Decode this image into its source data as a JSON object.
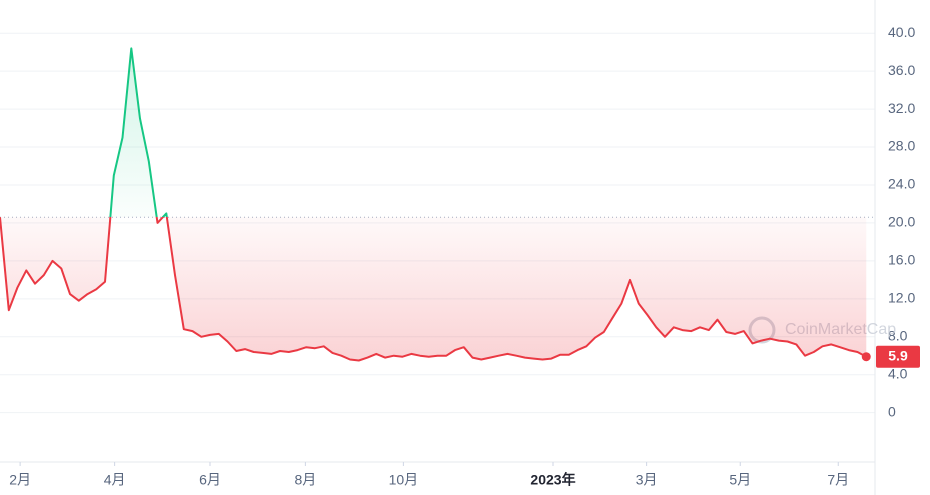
{
  "chart_data": {
    "type": "line",
    "values": [
      20.6,
      10.8,
      13.2,
      15,
      13.6,
      14.5,
      16,
      15.2,
      12.5,
      11.8,
      12.5,
      13,
      13.8,
      25,
      29,
      38.4,
      31,
      26.5,
      20,
      21,
      14.5,
      8.8,
      8.6,
      8,
      8.2,
      8.3,
      7.5,
      6.5,
      6.7,
      6.4,
      6.3,
      6.2,
      6.5,
      6.4,
      6.6,
      6.9,
      6.8,
      7,
      6.3,
      6,
      5.6,
      5.5,
      5.8,
      6.2,
      5.8,
      6,
      5.9,
      6.2,
      6,
      5.9,
      6,
      6,
      6.6,
      6.9,
      5.8,
      5.6,
      5.8,
      6,
      6.2,
      6,
      5.8,
      5.7,
      5.6,
      5.7,
      6.1,
      6.1,
      6.6,
      7,
      7.9,
      8.5,
      10,
      11.5,
      14,
      11.5,
      10.3,
      9,
      8,
      9,
      8.7,
      8.6,
      9,
      8.7,
      9.8,
      8.5,
      8.3,
      8.6,
      7.3,
      7.6,
      7.8,
      7.6,
      7.5,
      7.2,
      6,
      6.4,
      7,
      7.2,
      6.9,
      6.6,
      6.4,
      5.9
    ],
    "baseline": 20.6,
    "up_color": "#16c784",
    "down_color": "#ea3943",
    "xlim": [
      0,
      100
    ],
    "xticks": [
      {
        "value": 2.3,
        "label": "2月"
      },
      {
        "value": 13.1,
        "label": "4月"
      },
      {
        "value": 24,
        "label": "6月"
      },
      {
        "value": 34.9,
        "label": "8月"
      },
      {
        "value": 46.1,
        "label": "10月"
      },
      {
        "value": 63.2,
        "label": "2023年",
        "bold": true
      },
      {
        "value": 73.9,
        "label": "3月"
      },
      {
        "value": 84.6,
        "label": "5月"
      },
      {
        "value": 95.8,
        "label": "7月"
      }
    ],
    "ylim": [
      -5.2,
      43.5
    ],
    "yticks": [
      0,
      {
        "value": 4,
        "label": "4.0"
      },
      {
        "value": 8,
        "label": "8.0"
      },
      {
        "value": 12,
        "label": "12.0"
      },
      {
        "value": 16,
        "label": "16.0"
      },
      {
        "value": 20,
        "label": "20.0"
      },
      {
        "value": 24,
        "label": "24.0"
      },
      {
        "value": 28,
        "label": "28.0"
      },
      {
        "value": 32,
        "label": "32.0"
      },
      {
        "value": 36,
        "label": "36.0"
      },
      {
        "value": 40,
        "label": "40.0"
      }
    ],
    "grid": true,
    "watermark": "CoinMarketCap"
  }
}
